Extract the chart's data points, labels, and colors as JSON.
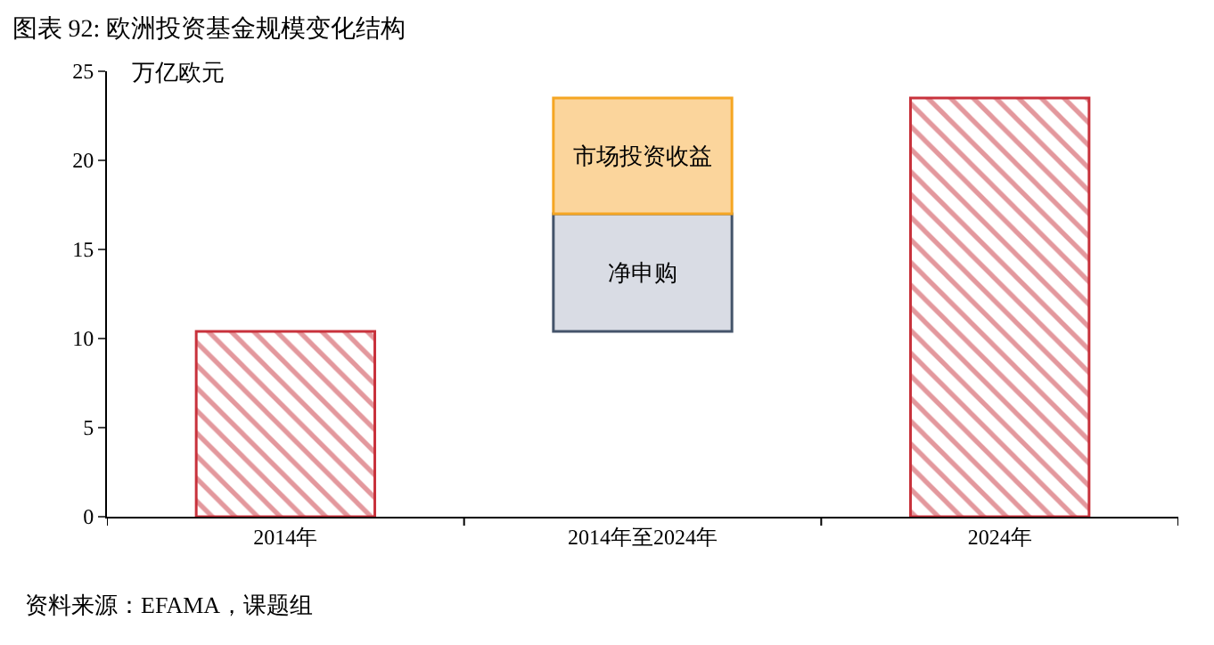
{
  "chart_data": {
    "type": "bar",
    "title": "图表 92: 欧洲投资基金规模变化结构",
    "ylabel": "万亿欧元",
    "annotations": [
      "资料来源：EFAMA，课题组"
    ],
    "categories": [
      "2014年",
      "2014年至2024年",
      "2024年"
    ],
    "stacked": true,
    "series": [
      {
        "color": "#c8323c",
        "values": [
          10.4,
          null,
          23.5
        ],
        "base": [
          0,
          null,
          0
        ]
      },
      {
        "name": "净申购",
        "color": "#d9dce4",
        "values": [
          null,
          6.6,
          null
        ],
        "base": [
          null,
          10.4,
          null
        ]
      },
      {
        "name": "市场投资收益",
        "color": "#fbd59c",
        "values": [
          null,
          6.5,
          null
        ],
        "base": [
          null,
          17,
          null
        ]
      }
    ],
    "ylim": [
      0,
      25
    ],
    "yticks": [
      0,
      5,
      10,
      15,
      20,
      25
    ],
    "legend": false
  }
}
